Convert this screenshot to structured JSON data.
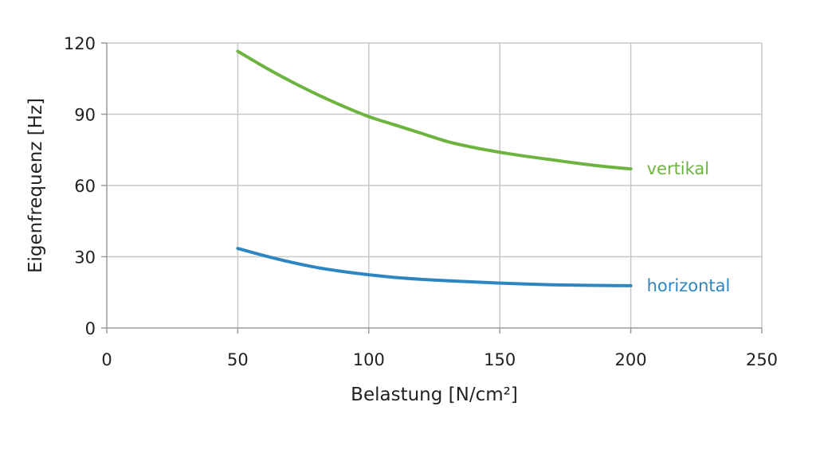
{
  "chart_data": {
    "type": "line",
    "xlabel": "Belastung [N/cm²]",
    "ylabel": "Eigenfrequenz [Hz]",
    "xlim": [
      0,
      250
    ],
    "ylim": [
      0,
      120
    ],
    "xticks": [
      0,
      50,
      100,
      150,
      200,
      250
    ],
    "yticks": [
      0,
      30,
      60,
      90,
      120
    ],
    "xtick_labels": [
      "0",
      "50",
      "100",
      "150",
      "200",
      "250"
    ],
    "ytick_labels": [
      "0",
      "30",
      "60",
      "90",
      "120"
    ],
    "grid": true,
    "legend": "inline labels at line ends",
    "series": [
      {
        "name": "vertikal",
        "color": "#6db33f",
        "x": [
          50,
          60,
          70,
          80,
          90,
          100,
          110,
          120,
          130,
          140,
          150,
          160,
          170,
          180,
          190,
          200
        ],
        "y": [
          116.5,
          110,
          104,
          98.5,
          93.5,
          89,
          85.5,
          82,
          78.5,
          76,
          74,
          72.3,
          70.8,
          69.3,
          68,
          67
        ]
      },
      {
        "name": "horizontal",
        "color": "#2e86c1",
        "x": [
          50,
          60,
          70,
          80,
          90,
          100,
          110,
          120,
          130,
          140,
          150,
          160,
          170,
          180,
          190,
          200
        ],
        "y": [
          33.5,
          30.5,
          27.8,
          25.5,
          23.8,
          22.4,
          21.3,
          20.5,
          19.9,
          19.4,
          18.9,
          18.5,
          18.2,
          18.0,
          17.9,
          17.8
        ]
      }
    ]
  }
}
